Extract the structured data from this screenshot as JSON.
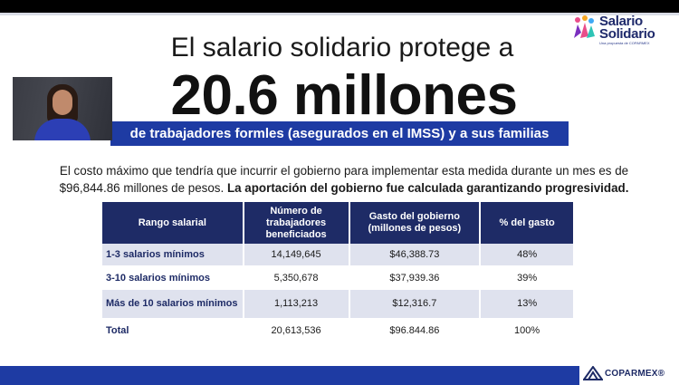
{
  "logo": {
    "line1": "Salario",
    "line2": "Solidario",
    "sub": "Una propuesta de COPARMEX"
  },
  "title": {
    "line1": "El salario solidario protege a",
    "big": "20.6 millones",
    "banner": "de trabajadores formles (asegurados en el IMSS) y a sus familias"
  },
  "paragraph": {
    "normal": "El costo máximo que tendría que incurrir el gobierno para implementar esta medida durante un mes es de $96,844.86 millones de pesos. ",
    "bold": "La aportación del gobierno fue calculada garantizando progresividad."
  },
  "table": {
    "headers": [
      "Rango salarial",
      "Número de trabajadores beneficiados",
      "Gasto del gobierno (millones de pesos)",
      "% del gasto"
    ],
    "rows": [
      [
        "1-3 salarios mínimos",
        "14,149,645",
        "$46,388.73",
        "48%"
      ],
      [
        "3-10 salarios mínimos",
        "5,350,678",
        "$37,939.36",
        "39%"
      ],
      [
        "Más de 10 salarios mínimos",
        "1,113,213",
        "$12,316.7",
        "13%"
      ],
      [
        "Total",
        "20,613,536",
        "$96.844.86",
        "100%"
      ]
    ]
  },
  "footer": {
    "brand": "COPARMEX",
    "mark": "®"
  },
  "colors": {
    "navy": "#1e2b66",
    "blue": "#1e3ba3",
    "row_tint": "#dfe2ee"
  },
  "icons": [
    "salario-solidario-emblem-icon",
    "coparmex-logo-icon"
  ]
}
